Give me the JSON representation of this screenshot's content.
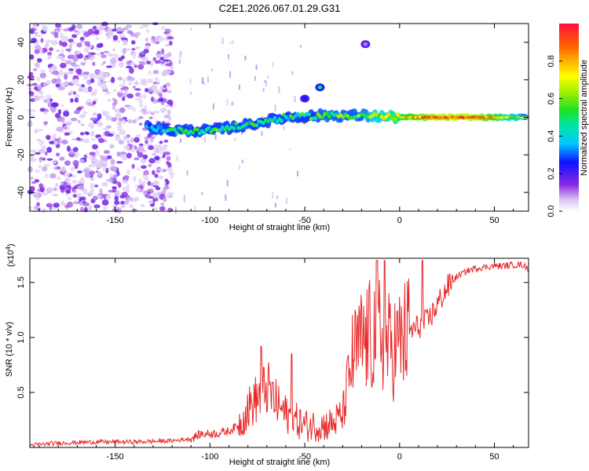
{
  "title": "C2E1.2026.067.01.29.G31",
  "chart_data": [
    {
      "type": "heatmap",
      "xlabel": "Height of straight line (km)",
      "ylabel": "Frequency (Hz)",
      "xlim": [
        -195,
        68
      ],
      "ylim": [
        -50,
        50
      ],
      "x_ticks": [
        -150,
        -100,
        -50,
        0,
        50
      ],
      "x_tick_labels": [
        "-150",
        "-100",
        "-50",
        "0",
        "50"
      ],
      "y_ticks": [
        -40,
        -20,
        0,
        20,
        40
      ],
      "y_tick_labels": [
        "-40",
        "-20",
        "0",
        "20",
        "40"
      ],
      "colorbar": {
        "label": "Normalized spectral amplitude",
        "range": [
          0,
          1
        ],
        "ticks": [
          0.0,
          0.2,
          0.4,
          0.6,
          0.8
        ],
        "tick_labels": [
          "0.0",
          "0.2",
          "0.4",
          "0.6",
          "0.8"
        ]
      },
      "ridge": [
        {
          "x": -133,
          "freq": -5,
          "amp": 0.35
        },
        {
          "x": -120,
          "freq": -7,
          "amp": 0.45
        },
        {
          "x": -100,
          "freq": -7,
          "amp": 0.5
        },
        {
          "x": -80,
          "freq": -4,
          "amp": 0.45
        },
        {
          "x": -60,
          "freq": 0,
          "amp": 0.45
        },
        {
          "x": -40,
          "freq": 1,
          "amp": 0.55
        },
        {
          "x": -20,
          "freq": 1,
          "amp": 0.55
        },
        {
          "x": 0,
          "freq": 0,
          "amp": 0.75
        },
        {
          "x": 20,
          "freq": 0,
          "amp": 0.9
        },
        {
          "x": 40,
          "freq": 0,
          "amp": 0.9
        },
        {
          "x": 67,
          "freq": 0,
          "amp": 0.55
        }
      ],
      "noise_region": {
        "x_range": [
          -195,
          -120
        ],
        "freq_range": [
          -50,
          50
        ],
        "amp": 0.15
      },
      "isolated_features": [
        {
          "x": -42,
          "freq": 16,
          "amp": 0.5
        },
        {
          "x": -50,
          "freq": 10,
          "amp": 0.25
        },
        {
          "x": -18,
          "freq": 39,
          "amp": 0.1
        }
      ]
    },
    {
      "type": "line",
      "xlabel": "Height of straight line (km)",
      "ylabel": "SNR (10 * v/v)",
      "y_multiplier_label": "(x10",
      "y_multiplier_exponent": "4",
      "y_multiplier_suffix": ")",
      "xlim": [
        -195,
        68
      ],
      "ylim": [
        0,
        1.72
      ],
      "x_ticks": [
        -150,
        -100,
        -50,
        0,
        50
      ],
      "x_tick_labels": [
        "-150",
        "-100",
        "-50",
        "0",
        "50"
      ],
      "y_ticks": [
        0.5,
        1.0,
        1.5
      ],
      "y_tick_labels": [
        "0.5",
        "1.0",
        "1.5"
      ],
      "color": "#e8282a",
      "series": [
        {
          "name": "SNR",
          "x": [
            -195,
            -180,
            -160,
            -140,
            -120,
            -110,
            -105,
            -95,
            -90,
            -85,
            -80,
            -75,
            -70,
            -65,
            -60,
            -55,
            -50,
            -45,
            -40,
            -35,
            -30,
            -28,
            -25,
            -20,
            -15,
            -12,
            -8,
            -5,
            0,
            5,
            10,
            15,
            20,
            25,
            30,
            35,
            40,
            45,
            50,
            55,
            60,
            65,
            68
          ],
          "y": [
            0.02,
            0.04,
            0.05,
            0.05,
            0.06,
            0.08,
            0.12,
            0.13,
            0.15,
            0.2,
            0.35,
            0.45,
            0.55,
            0.4,
            0.3,
            0.25,
            0.2,
            0.2,
            0.2,
            0.22,
            0.3,
            0.5,
            0.8,
            0.95,
            1.0,
            1.1,
            1.0,
            0.9,
            0.95,
            1.05,
            1.1,
            1.15,
            1.3,
            1.45,
            1.55,
            1.6,
            1.63,
            1.64,
            1.65,
            1.65,
            1.66,
            1.66,
            1.62
          ]
        }
      ],
      "spike_x": [
        -73,
        -57,
        -12,
        -8,
        12
      ],
      "spike_y": [
        0.92,
        0.85,
        1.7,
        1.7,
        1.7
      ]
    }
  ]
}
